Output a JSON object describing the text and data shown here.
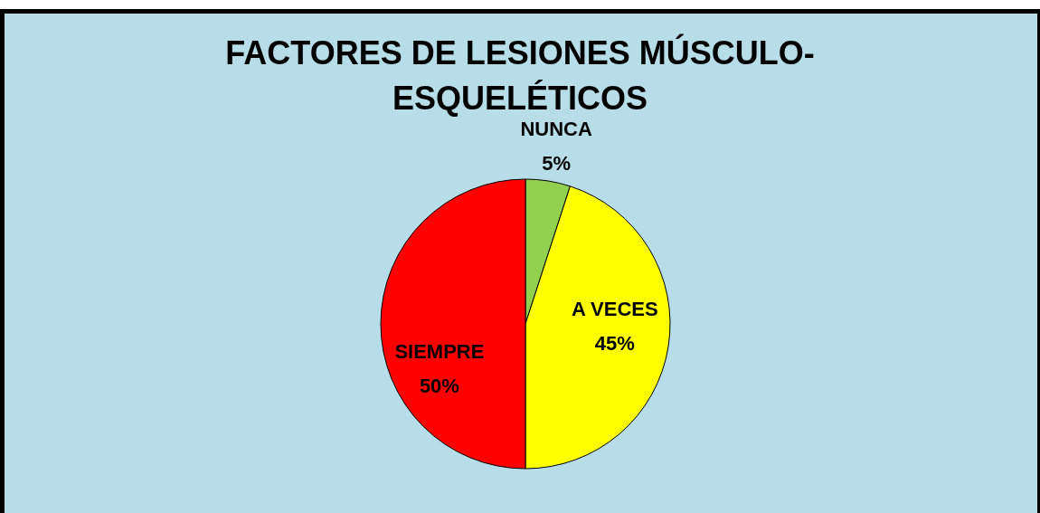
{
  "chart_data": {
    "type": "pie",
    "title": "FACTORES DE LESIONES MÚSCULO-ESQUELÉTICOS",
    "categories": [
      "NUNCA",
      "A VECES",
      "SIEMPRE"
    ],
    "values": [
      5,
      45,
      50
    ],
    "value_labels": [
      "5%",
      "45%",
      "50%"
    ],
    "colors": [
      "#92d050",
      "#ffff00",
      "#ff0000"
    ]
  }
}
